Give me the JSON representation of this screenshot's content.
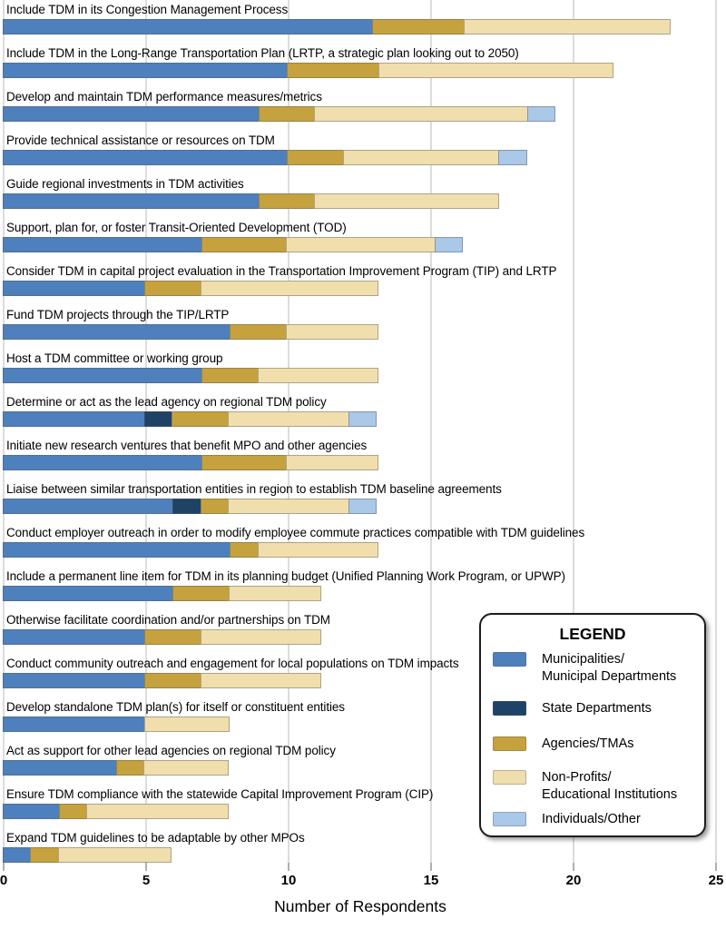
{
  "chart_data": {
    "type": "bar",
    "orientation": "horizontal",
    "stacked": true,
    "xlabel": "Number of Respondents",
    "xlim": [
      0,
      25
    ],
    "xticks": [
      0,
      5,
      10,
      15,
      20,
      25
    ],
    "grid": "vertical",
    "legend_position": "lower-right-overlay",
    "series": [
      {
        "name": "Municipalities/Municipal Departments",
        "slug": "municipalities-municipal-departments",
        "color": "#4D80BC"
      },
      {
        "name": "State Departments",
        "slug": "state-departments",
        "color": "#1F4366"
      },
      {
        "name": "Agencies/TMAs",
        "slug": "agencies-tmas",
        "color": "#C6A23E"
      },
      {
        "name": "Non-Profits/Educational Institutions",
        "slug": "non-profits-educational-institutions",
        "color": "#F0DFAD"
      },
      {
        "name": "Individuals/Other",
        "slug": "individuals-other",
        "color": "#AAC8E8"
      }
    ],
    "categories": [
      "Include TDM in its Congestion Management Process",
      "Include TDM in the Long-Range Transportation Plan (LRTP, a strategic plan looking out to 2050)",
      "Develop and maintain TDM performance measures/metrics",
      "Provide technical assistance or resources on TDM",
      "Guide regional investments in TDM activities",
      "Support, plan for, or foster Transit-Oriented Development (TOD)",
      "Consider TDM in capital project evaluation in the Transportation Improvement Program (TIP) and LRTP",
      "Fund TDM projects through the TIP/LRTP",
      "Host a TDM committee or working group",
      "Determine or act as the lead agency on regional TDM policy",
      "Initiate new research ventures that benefit MPO and other agencies",
      "Liaise between similar transportation entities in region to establish TDM baseline agreements",
      "Conduct employer outreach in order to modify employee commute practices compatible with TDM guidelines",
      "Include a permanent line item for TDM in its planning budget (Unified Planning Work Program, or UPWP)",
      "Otherwise facilitate coordination and/or partnerships on TDM",
      "Conduct community outreach and engagement for local populations on TDM impacts",
      "Develop standalone TDM plan(s) for itself or constituent entities",
      "Act as support for other lead agencies on regional TDM policy",
      "Ensure TDM compliance with the statewide Capital Improvement Program (CIP)",
      "Expand TDM guidelines to be adaptable by other MPOs"
    ],
    "values": [
      [
        13,
        0,
        3.25,
        7.25,
        0
      ],
      [
        10,
        0,
        3.25,
        8.25,
        0
      ],
      [
        9,
        0,
        2,
        7.5,
        1
      ],
      [
        10,
        0,
        2,
        5.5,
        1
      ],
      [
        9,
        0,
        2,
        6.5,
        0
      ],
      [
        7,
        0,
        3,
        5.25,
        1
      ],
      [
        5,
        0,
        2,
        6.25,
        0
      ],
      [
        8,
        0,
        2,
        3.25,
        0
      ],
      [
        7,
        0,
        2,
        4.25,
        0
      ],
      [
        5,
        1,
        2,
        4.25,
        1
      ],
      [
        7,
        0,
        3,
        3.25,
        0
      ],
      [
        6,
        1,
        1,
        4.25,
        1
      ],
      [
        8,
        0,
        1,
        4.25,
        0
      ],
      [
        6,
        0,
        2,
        3.25,
        0
      ],
      [
        5,
        0,
        2,
        4.25,
        0
      ],
      [
        5,
        0,
        2,
        4.25,
        0
      ],
      [
        5,
        0,
        0,
        3,
        0
      ],
      [
        4,
        0,
        1,
        3,
        0
      ],
      [
        2,
        0,
        1,
        5,
        0
      ],
      [
        1,
        0,
        1,
        4,
        0
      ]
    ]
  },
  "legend": {
    "title": "LEGEND",
    "items": [
      {
        "lines": [
          "Municipalities/",
          "Municipal Departments"
        ]
      },
      {
        "lines": [
          "State Departments"
        ]
      },
      {
        "lines": [
          "Agencies/TMAs"
        ]
      },
      {
        "lines": [
          "Non-Profits/",
          "Educational Institutions"
        ]
      },
      {
        "lines": [
          "Individuals/Other"
        ]
      }
    ]
  },
  "colors": {
    "gridline": "#dcdcdc",
    "tick": "#b0b0b0",
    "text": "#000000"
  }
}
